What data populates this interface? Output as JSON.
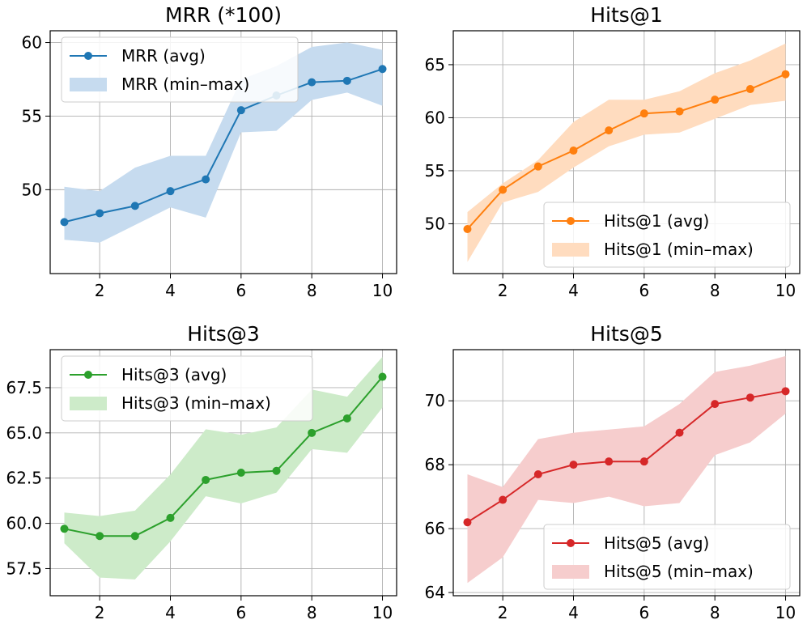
{
  "chart_data": [
    {
      "type": "line",
      "title": "MRR (*100)",
      "x": [
        1,
        2,
        3,
        4,
        5,
        6,
        7,
        8,
        9,
        10
      ],
      "series": [
        {
          "name": "MRR (avg)",
          "values": [
            47.8,
            48.4,
            48.9,
            49.9,
            50.7,
            55.4,
            56.4,
            57.3,
            57.4,
            58.2
          ]
        },
        {
          "name": "MRR (min–max)",
          "kind": "band",
          "lower": [
            46.6,
            46.4,
            47.6,
            48.8,
            48.1,
            53.9,
            54.0,
            56.1,
            56.6,
            55.7
          ],
          "upper": [
            50.2,
            49.9,
            51.5,
            52.3,
            52.3,
            57.5,
            58.4,
            59.7,
            60.0,
            59.5
          ]
        }
      ],
      "colors": {
        "line": "#1f77b4",
        "band": "#c6dbef"
      },
      "xlim": [
        0.6,
        10.4
      ],
      "ylim": [
        44.3,
        60.8
      ],
      "xticks": [
        2,
        4,
        6,
        8,
        10
      ],
      "yticks": [
        50,
        55,
        60
      ],
      "legend_position": "top-left",
      "grid": true
    },
    {
      "type": "line",
      "title": "Hits@1",
      "x": [
        1,
        2,
        3,
        4,
        5,
        6,
        7,
        8,
        9,
        10
      ],
      "series": [
        {
          "name": "Hits@1 (avg)",
          "values": [
            49.5,
            53.2,
            55.4,
            56.9,
            58.8,
            60.4,
            60.6,
            61.7,
            62.7,
            64.1
          ]
        },
        {
          "name": "Hits@1 (min–max)",
          "kind": "band",
          "lower": [
            46.4,
            52.0,
            53.0,
            55.3,
            57.3,
            58.4,
            58.6,
            59.9,
            61.2,
            61.6
          ],
          "upper": [
            51.1,
            53.8,
            56.0,
            59.6,
            61.7,
            61.7,
            62.5,
            64.2,
            65.4,
            67.0
          ]
        }
      ],
      "colors": {
        "line": "#ff7f0e",
        "band": "#ffdcbf"
      },
      "xlim": [
        0.6,
        10.4
      ],
      "ylim": [
        45.3,
        68.2
      ],
      "xticks": [
        2,
        4,
        6,
        8,
        10
      ],
      "yticks": [
        50,
        55,
        60,
        65
      ],
      "legend_position": "bottom-right",
      "grid": true
    },
    {
      "type": "line",
      "title": "Hits@3",
      "x": [
        1,
        2,
        3,
        4,
        5,
        6,
        7,
        8,
        9,
        10
      ],
      "series": [
        {
          "name": "Hits@3 (avg)",
          "values": [
            59.7,
            59.3,
            59.3,
            60.3,
            62.4,
            62.8,
            62.9,
            65.0,
            65.8,
            68.1
          ]
        },
        {
          "name": "Hits@3 (min–max)",
          "kind": "band",
          "lower": [
            58.9,
            57.0,
            56.9,
            59.0,
            61.5,
            61.1,
            61.7,
            64.1,
            63.9,
            66.4
          ],
          "upper": [
            60.6,
            60.4,
            60.7,
            62.7,
            65.2,
            64.9,
            65.3,
            67.4,
            67.0,
            69.2
          ]
        }
      ],
      "colors": {
        "line": "#2ca02c",
        "band": "#cdebc9"
      },
      "xlim": [
        0.6,
        10.4
      ],
      "ylim": [
        56.0,
        69.6
      ],
      "xticks": [
        2,
        4,
        6,
        8,
        10
      ],
      "yticks": [
        57.5,
        60.0,
        62.5,
        65.0,
        67.5
      ],
      "ytick_labels": [
        "57.5",
        "60.0",
        "62.5",
        "65.0",
        "67.5"
      ],
      "legend_position": "top-left",
      "grid": true
    },
    {
      "type": "line",
      "title": "Hits@5",
      "x": [
        1,
        2,
        3,
        4,
        5,
        6,
        7,
        8,
        9,
        10
      ],
      "series": [
        {
          "name": "Hits@5 (avg)",
          "values": [
            66.2,
            66.9,
            67.7,
            68.0,
            68.1,
            68.1,
            69.0,
            69.9,
            70.1,
            70.3
          ]
        },
        {
          "name": "Hits@5 (min–max)",
          "kind": "band",
          "lower": [
            64.3,
            65.1,
            66.9,
            66.8,
            67.0,
            66.7,
            66.8,
            68.3,
            68.7,
            69.6
          ],
          "upper": [
            67.7,
            67.3,
            68.8,
            69.0,
            69.1,
            69.2,
            69.9,
            70.9,
            71.1,
            71.4
          ]
        }
      ],
      "colors": {
        "line": "#d62728",
        "band": "#f6cdcd"
      },
      "xlim": [
        0.6,
        10.4
      ],
      "ylim": [
        63.9,
        71.6
      ],
      "xticks": [
        2,
        4,
        6,
        8,
        10
      ],
      "yticks": [
        64,
        66,
        68,
        70
      ],
      "legend_position": "bottom-right",
      "grid": true
    }
  ]
}
